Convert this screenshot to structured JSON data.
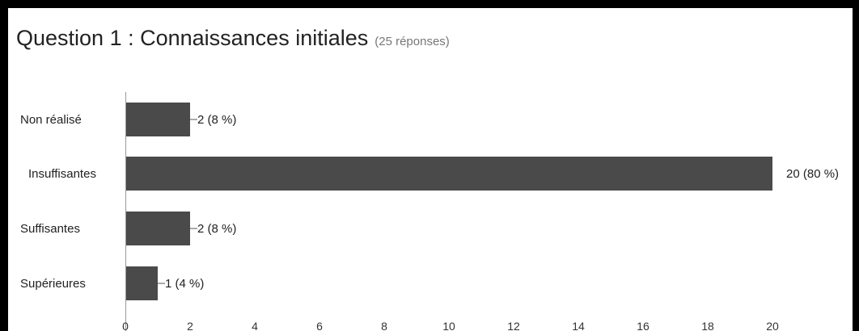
{
  "chart_data": {
    "type": "bar",
    "orientation": "horizontal",
    "title": "Question 1 : Connaissances initiales",
    "subtitle": "(25 réponses)",
    "categories": [
      "Non réalisé",
      "Insuffisantes",
      "Suffisantes",
      "Supérieures"
    ],
    "values": [
      2,
      20,
      2,
      1
    ],
    "data_labels": [
      "2 (8 %)",
      "20 (80 %)",
      "2 (8 %)",
      "1 (4 %)"
    ],
    "x_ticks": [
      "0",
      "2",
      "4",
      "6",
      "8",
      "10",
      "12",
      "14",
      "16",
      "18",
      "20"
    ],
    "xlim": [
      0,
      20
    ],
    "grid": false,
    "legend": "none",
    "bar_color": "#4a4a4a"
  }
}
